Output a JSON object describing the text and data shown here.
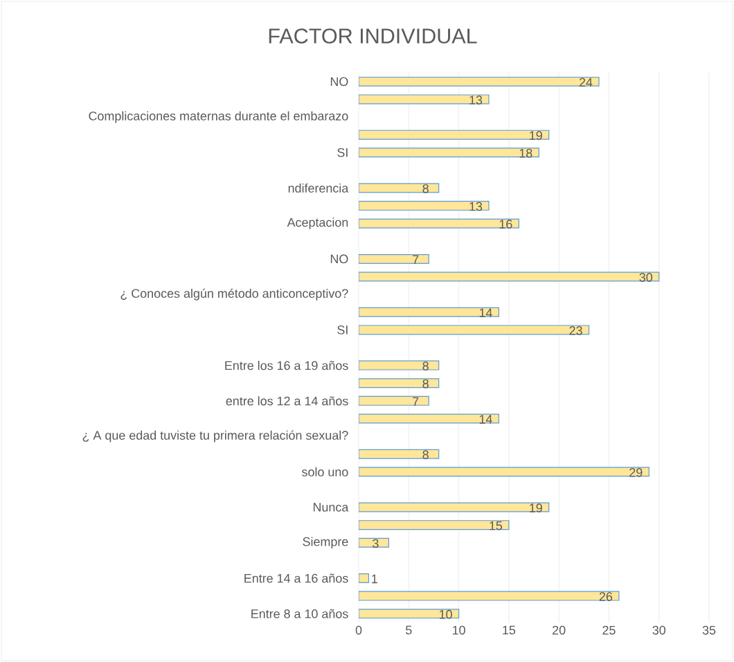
{
  "chart_data": {
    "type": "bar",
    "orientation": "horizontal",
    "title": "FACTOR INDIVIDUAL",
    "categories": [
      "NO",
      null,
      "Complicaciones maternas durante el embarazo",
      null,
      "SI",
      null,
      "ndiferencia",
      null,
      "Aceptacion",
      null,
      "NO",
      null,
      "¿ Conoces algún método anticonceptivo?",
      null,
      "SI",
      null,
      "Entre los 16 a 19 años",
      null,
      "entre los 12 a 14 años",
      null,
      "¿ A que edad tuviste tu primera relación sexual?",
      null,
      "solo uno",
      null,
      "Nunca",
      null,
      "Siempre",
      null,
      "Entre 14 a 16 años",
      null,
      "Entre 8 a 10 años"
    ],
    "values": [
      24,
      13,
      null,
      19,
      18,
      null,
      8,
      13,
      16,
      null,
      7,
      30,
      null,
      14,
      23,
      null,
      8,
      8,
      7,
      14,
      null,
      8,
      29,
      null,
      19,
      15,
      3,
      null,
      1,
      26,
      10
    ],
    "color": "#ffe699",
    "xlim": [
      0,
      35
    ],
    "xticks": [
      0,
      5,
      10,
      15,
      20,
      25,
      30,
      35
    ],
    "grid": "x",
    "data_labels": true
  }
}
